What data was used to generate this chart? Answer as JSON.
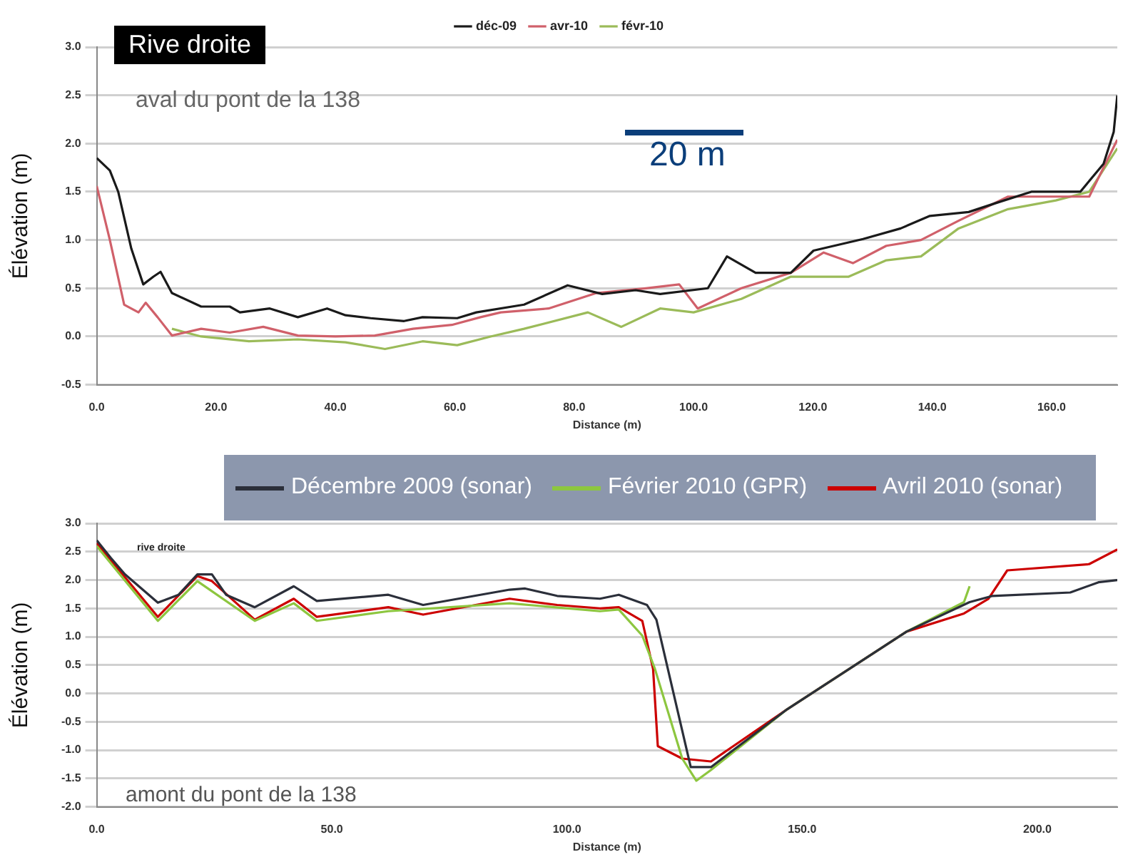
{
  "chart_data": [
    {
      "type": "line",
      "ylabel": "Élévation (m)",
      "xlabel": "Distance (m)",
      "annotations": [
        "Rive droite",
        "aval du pont de la 138",
        "20 m"
      ],
      "legend": "top",
      "grid": "y",
      "marker": "none",
      "line_style": "solid",
      "xlim": [
        0,
        171
      ],
      "xticks": [
        {
          "value": 0,
          "label": "0.0"
        },
        {
          "value": 20,
          "label": "20.0"
        },
        {
          "value": 40,
          "label": "40.0"
        },
        {
          "value": 60,
          "label": "60.0"
        },
        {
          "value": 80,
          "label": "80.0"
        },
        {
          "value": 100,
          "label": "100.0"
        },
        {
          "value": 120,
          "label": "120.0"
        },
        {
          "value": 140,
          "label": "140.0"
        },
        {
          "value": 160,
          "label": "160.0"
        }
      ],
      "ylim": [
        -0.5,
        3
      ],
      "yticks": [
        {
          "value": -0.5,
          "label": "-0.5"
        },
        {
          "value": 0,
          "label": "0.0"
        },
        {
          "value": 0.5,
          "label": "0.5"
        },
        {
          "value": 1,
          "label": "1.0"
        },
        {
          "value": 1.5,
          "label": "1.5"
        },
        {
          "value": 2,
          "label": "2.0"
        },
        {
          "value": 2.5,
          "label": "2.5"
        },
        {
          "value": 3,
          "label": "3.0"
        }
      ],
      "series": [
        {
          "name": "déc-09",
          "color": "#1a1a1a",
          "x": [
            0,
            2.2,
            3.6,
            5.8,
            7.8,
            9.5,
            10.7,
            12.6,
            17.5,
            22.3,
            24,
            29,
            33.7,
            38.6,
            41.7,
            45.9,
            51.5,
            54.6,
            60.4,
            63.6,
            71.6,
            78.9,
            84.7,
            90.3,
            94.4,
            102.4,
            105.6,
            110.4,
            116.3,
            120.1,
            128.4,
            134.7,
            139.6,
            146.1,
            151,
            156.6,
            164.8,
            168.7,
            170.4,
            171
          ],
          "values": [
            1.85,
            1.72,
            1.5,
            0.91,
            0.54,
            0.62,
            0.67,
            0.45,
            0.31,
            0.31,
            0.25,
            0.29,
            0.2,
            0.29,
            0.22,
            0.19,
            0.16,
            0.2,
            0.19,
            0.25,
            0.33,
            0.53,
            0.44,
            0.48,
            0.44,
            0.5,
            0.83,
            0.66,
            0.66,
            0.89,
            1.01,
            1.12,
            1.25,
            1.29,
            1.39,
            1.5,
            1.5,
            1.79,
            2.12,
            2.5
          ]
        },
        {
          "name": "avr-10",
          "color": "#d0606a",
          "x": [
            0,
            2.2,
            4.6,
            7,
            8.2,
            10.2,
            12.6,
            17.5,
            22.3,
            27.9,
            33.7,
            40,
            46.6,
            53,
            59.5,
            64.3,
            67.7,
            75.7,
            83.7,
            92,
            97.6,
            100.7,
            108,
            116.3,
            121.8,
            126.7,
            132.3,
            138.1,
            144.4,
            152.7,
            160.7,
            166.3,
            171
          ],
          "values": [
            1.56,
            1,
            0.33,
            0.25,
            0.35,
            0.2,
            0.01,
            0.08,
            0.04,
            0.1,
            0.01,
            0,
            0.01,
            0.08,
            0.12,
            0.2,
            0.25,
            0.29,
            0.45,
            0.5,
            0.54,
            0.29,
            0.5,
            0.66,
            0.87,
            0.76,
            0.94,
            1,
            1.2,
            1.45,
            1.45,
            1.45,
            2.04
          ]
        },
        {
          "name": "févr-10",
          "color": "#9bbb59",
          "x": [
            12.6,
            17.5,
            25.5,
            33.7,
            41.7,
            48.3,
            54.6,
            60.4,
            66,
            71.6,
            82.3,
            87.9,
            94.4,
            100,
            108,
            116.3,
            126,
            132.3,
            138.1,
            144.4,
            152.7,
            160.7,
            166.3,
            171
          ],
          "values": [
            0.08,
            0,
            -0.05,
            -0.03,
            -0.06,
            -0.13,
            -0.05,
            -0.09,
            0,
            0.08,
            0.25,
            0.1,
            0.29,
            0.25,
            0.39,
            0.62,
            0.62,
            0.79,
            0.83,
            1.12,
            1.32,
            1.41,
            1.5,
            1.95
          ]
        }
      ]
    },
    {
      "type": "line",
      "ylabel": "Élévation (m)",
      "xlabel": "Distance (m)",
      "annotations": [
        "rive droite",
        "amont du pont de la 138"
      ],
      "legend": "top",
      "grid": "y",
      "marker": "none",
      "line_style": "solid",
      "xlim": [
        0,
        217
      ],
      "xticks": [
        {
          "value": 0,
          "label": "0.0"
        },
        {
          "value": 50,
          "label": "50.0"
        },
        {
          "value": 100,
          "label": "100.0"
        },
        {
          "value": 150,
          "label": "150.0"
        },
        {
          "value": 200,
          "label": "200.0"
        }
      ],
      "ylim": [
        -2,
        3
      ],
      "yticks": [
        {
          "value": -2,
          "label": "-2.0"
        },
        {
          "value": -1.5,
          "label": "-1.5"
        },
        {
          "value": -1,
          "label": "-1.0"
        },
        {
          "value": -0.5,
          "label": "-0.5"
        },
        {
          "value": 0,
          "label": "0.0"
        },
        {
          "value": 0.5,
          "label": "0.5"
        },
        {
          "value": 1,
          "label": "1.0"
        },
        {
          "value": 1.5,
          "label": "1.5"
        },
        {
          "value": 2,
          "label": "2.0"
        },
        {
          "value": 2.5,
          "label": "2.5"
        },
        {
          "value": 3,
          "label": "3.0"
        }
      ],
      "series": [
        {
          "name": "Décembre 2009 (sonar)",
          "color": "#2b2f3a",
          "x": [
            0,
            3,
            6,
            13,
            17.4,
            21.4,
            24.5,
            27.5,
            33.6,
            41.9,
            46.8,
            62,
            69.4,
            87.8,
            91.1,
            97.9,
            107,
            111,
            117,
            119,
            126.3,
            130.6,
            146.8,
            172.2,
            185.6,
            190.5,
            207,
            213,
            217
          ],
          "values": [
            2.7,
            2.39,
            2.1,
            1.6,
            1.74,
            2.1,
            2.1,
            1.74,
            1.52,
            1.89,
            1.63,
            1.74,
            1.56,
            1.83,
            1.85,
            1.72,
            1.67,
            1.74,
            1.56,
            1.3,
            -1.3,
            -1.3,
            -0.28,
            1.09,
            1.61,
            1.72,
            1.78,
            1.96,
            2
          ]
        },
        {
          "name": "Février 2010 (GPR)",
          "color": "#8dc63f",
          "x": [
            0,
            13,
            21.4,
            33.6,
            41.9,
            46.8,
            62,
            87.8,
            107,
            111,
            116,
            118.7,
            124.5,
            127.5,
            130.6,
            146.8,
            172.2,
            184.4,
            185.6
          ],
          "values": [
            2.6,
            1.28,
            1.98,
            1.28,
            1.59,
            1.28,
            1.45,
            1.59,
            1.45,
            1.48,
            1.02,
            0.43,
            -1.15,
            -1.54,
            -1.35,
            -0.28,
            1.09,
            1.61,
            1.89
          ]
        },
        {
          "name": "Avril 2010 (sonar)",
          "color": "#cc0000",
          "x": [
            0,
            13,
            21.4,
            24.5,
            33.6,
            41.9,
            46.8,
            62,
            69.4,
            87.8,
            97.9,
            107,
            111,
            116,
            118.3,
            119.3,
            124.5,
            130.6,
            146.8,
            172.2,
            184.4,
            189.6,
            193.6,
            211,
            217
          ],
          "values": [
            2.65,
            1.35,
            2.07,
            1.98,
            1.3,
            1.67,
            1.35,
            1.52,
            1.39,
            1.67,
            1.56,
            1.5,
            1.52,
            1.28,
            0.43,
            -0.93,
            -1.15,
            -1.2,
            -0.28,
            1.09,
            1.41,
            1.67,
            2.17,
            2.28,
            2.54
          ]
        }
      ]
    }
  ]
}
